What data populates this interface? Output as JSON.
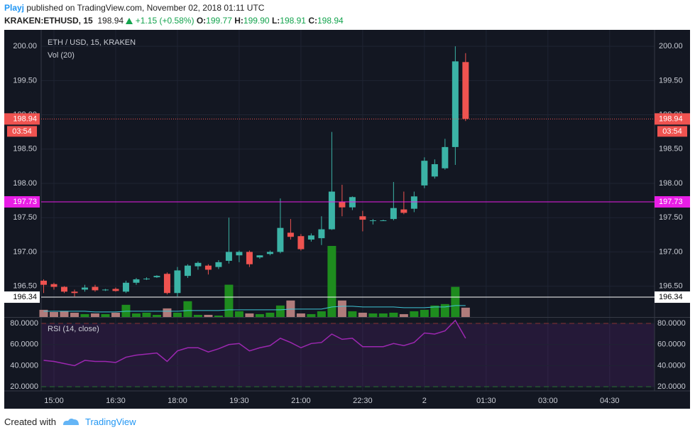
{
  "header": {
    "author": "Playj",
    "published": "published on TradingView.com, November 02, 2018 01:11 UTC",
    "symbol": "KRAKEN:ETHUSD, 15",
    "last": "198.94",
    "change": "+1.15 (+0.58%)",
    "fields": [
      {
        "label": "O:",
        "value": "199.77"
      },
      {
        "label": "H:",
        "value": "199.90"
      },
      {
        "label": "L:",
        "value": "198.91"
      },
      {
        "label": "C:",
        "value": "198.94"
      }
    ]
  },
  "footer": {
    "created": "Created with",
    "brand": "TradingView"
  },
  "chart_data": {
    "type": "candlestick",
    "title": "ETH / USD, 15, KRAKEN",
    "up_color": "#3bb3a6",
    "down_color": "#ef5350",
    "vol_up_color": "#1e8c1e",
    "vol_down_color": "#b07b7b",
    "grid": true,
    "x": [
      14.75,
      15,
      15.25,
      15.5,
      15.75,
      16,
      16.25,
      16.5,
      16.75,
      17,
      17.25,
      17.5,
      17.75,
      18,
      18.25,
      18.5,
      18.75,
      19,
      19.25,
      19.5,
      19.75,
      20,
      20.25,
      20.5,
      20.75,
      21,
      21.25,
      21.5,
      21.75,
      22,
      22.25,
      22.5,
      22.75,
      23,
      23.25,
      23.5,
      23.75,
      24,
      24.25,
      24.5,
      24.75,
      25
    ],
    "open": [
      196.58,
      196.53,
      196.49,
      196.42,
      196.45,
      196.49,
      196.44,
      196.46,
      196.42,
      196.55,
      196.6,
      196.63,
      196.68,
      196.4,
      196.65,
      196.79,
      196.8,
      196.78,
      196.87,
      196.95,
      197.0,
      196.92,
      196.97,
      197.0,
      197.28,
      197.23,
      197.18,
      197.2,
      197.33,
      197.73,
      197.65,
      197.52,
      197.45,
      197.46,
      197.48,
      197.62,
      197.63,
      197.97,
      198.1,
      198.22,
      198.53,
      199.77
    ],
    "high": [
      196.6,
      196.55,
      196.5,
      196.45,
      196.52,
      196.52,
      196.46,
      196.48,
      196.58,
      196.62,
      196.63,
      196.66,
      196.7,
      196.78,
      196.82,
      196.86,
      196.82,
      196.88,
      197.5,
      197.02,
      197.02,
      196.95,
      197.02,
      197.78,
      197.48,
      197.26,
      197.27,
      197.52,
      198.75,
      197.98,
      197.81,
      197.6,
      197.48,
      197.47,
      198.02,
      197.88,
      197.88,
      198.38,
      198.35,
      198.65,
      200.0,
      199.9
    ],
    "low": [
      196.4,
      196.45,
      196.4,
      196.35,
      196.42,
      196.42,
      196.43,
      196.42,
      196.4,
      196.52,
      196.59,
      196.62,
      196.38,
      196.35,
      196.62,
      196.74,
      196.67,
      196.75,
      196.83,
      196.85,
      196.78,
      196.9,
      196.95,
      196.98,
      197.18,
      197.02,
      197.15,
      197.1,
      197.32,
      197.52,
      197.61,
      197.3,
      197.4,
      197.45,
      197.46,
      197.55,
      197.58,
      197.93,
      198.07,
      198.2,
      198.27,
      198.91
    ],
    "close": [
      196.52,
      196.49,
      196.42,
      196.4,
      196.48,
      196.44,
      196.45,
      196.43,
      196.55,
      196.6,
      196.61,
      196.65,
      196.4,
      196.73,
      196.8,
      196.84,
      196.74,
      196.85,
      197.0,
      197.0,
      196.82,
      196.95,
      197.0,
      197.35,
      197.22,
      197.04,
      197.24,
      197.33,
      197.88,
      197.65,
      197.8,
      197.47,
      197.46,
      197.46,
      197.64,
      197.57,
      197.81,
      198.33,
      198.28,
      198.53,
      199.78,
      198.94
    ],
    "xlim": [
      14.69,
      29.59
    ],
    "xticks": [
      {
        "value": 15,
        "label": "15:00"
      },
      {
        "value": 16.5,
        "label": "16:30"
      },
      {
        "value": 18,
        "label": "18:00"
      },
      {
        "value": 19.5,
        "label": "19:30"
      },
      {
        "value": 21,
        "label": "21:00"
      },
      {
        "value": 22.5,
        "label": "22:30"
      },
      {
        "value": 24,
        "label": "2"
      },
      {
        "value": 25.5,
        "label": "01:30"
      },
      {
        "value": 27,
        "label": "03:00"
      },
      {
        "value": 28.5,
        "label": "04:30"
      }
    ],
    "ylim": [
      196.05,
      200.24
    ],
    "yticks": [
      {
        "value": 196.5,
        "label": "196.50"
      },
      {
        "value": 197,
        "label": "197.00"
      },
      {
        "value": 197.5,
        "label": "197.50"
      },
      {
        "value": 198,
        "label": "198.00"
      },
      {
        "value": 198.5,
        "label": "198.50"
      },
      {
        "value": 199,
        "label": "199.00"
      },
      {
        "value": 199.5,
        "label": "199.50"
      },
      {
        "value": 200,
        "label": "200.00"
      }
    ],
    "price_lines": [
      {
        "value": 198.94,
        "color": "#ef5350",
        "style": "dotted",
        "text_color": "#ffffff",
        "countdown": "03:54"
      },
      {
        "value": 197.73,
        "color": "#e91ee6",
        "style": "solid",
        "text_color": "#ffffff"
      },
      {
        "value": 196.34,
        "color": "#ffffff",
        "style": "solid",
        "text_color": "#000000"
      }
    ],
    "volume": {
      "name": "Vol (20)",
      "ma_color": "#3fc6d6",
      "values": [
        10,
        7,
        8,
        6,
        4,
        5,
        4,
        6,
        17,
        5,
        6,
        3,
        12,
        6,
        22,
        3,
        3,
        2,
        45,
        8,
        5,
        4,
        6,
        16,
        23,
        5,
        4,
        8,
        99,
        23,
        8,
        6,
        5,
        5,
        6,
        4,
        8,
        10,
        16,
        18,
        42,
        13
      ],
      "ma": [
        8,
        8,
        8,
        8,
        8,
        7,
        7,
        7,
        8,
        8,
        8,
        8,
        8,
        8,
        9,
        9,
        9,
        9,
        10,
        10,
        10,
        10,
        10,
        10,
        11,
        11,
        11,
        11,
        14,
        15,
        15,
        14,
        14,
        14,
        14,
        13,
        13,
        13,
        14,
        14,
        16,
        16
      ]
    },
    "rsi": {
      "name": "RSI (14, close)",
      "color": "#9c27b0",
      "values": [
        45,
        44,
        42,
        40,
        45,
        44,
        44,
        43,
        48,
        50,
        51,
        52,
        44,
        54,
        57,
        57,
        53,
        56,
        60,
        61,
        54,
        57,
        59,
        66,
        62,
        57,
        61,
        62,
        70,
        65,
        66,
        58,
        58,
        58,
        61,
        59,
        62,
        71,
        70,
        73,
        83,
        66
      ],
      "ylim": [
        16,
        85.5
      ],
      "yticks": [
        {
          "value": 20,
          "label": "20.0000"
        },
        {
          "value": 40,
          "label": "40.0000"
        },
        {
          "value": 60,
          "label": "60.0000"
        },
        {
          "value": 80,
          "label": "80.0000"
        }
      ],
      "bands": [
        {
          "value": 80,
          "color": "#e53935"
        },
        {
          "value": 20,
          "color": "#2ea82e"
        }
      ]
    }
  }
}
